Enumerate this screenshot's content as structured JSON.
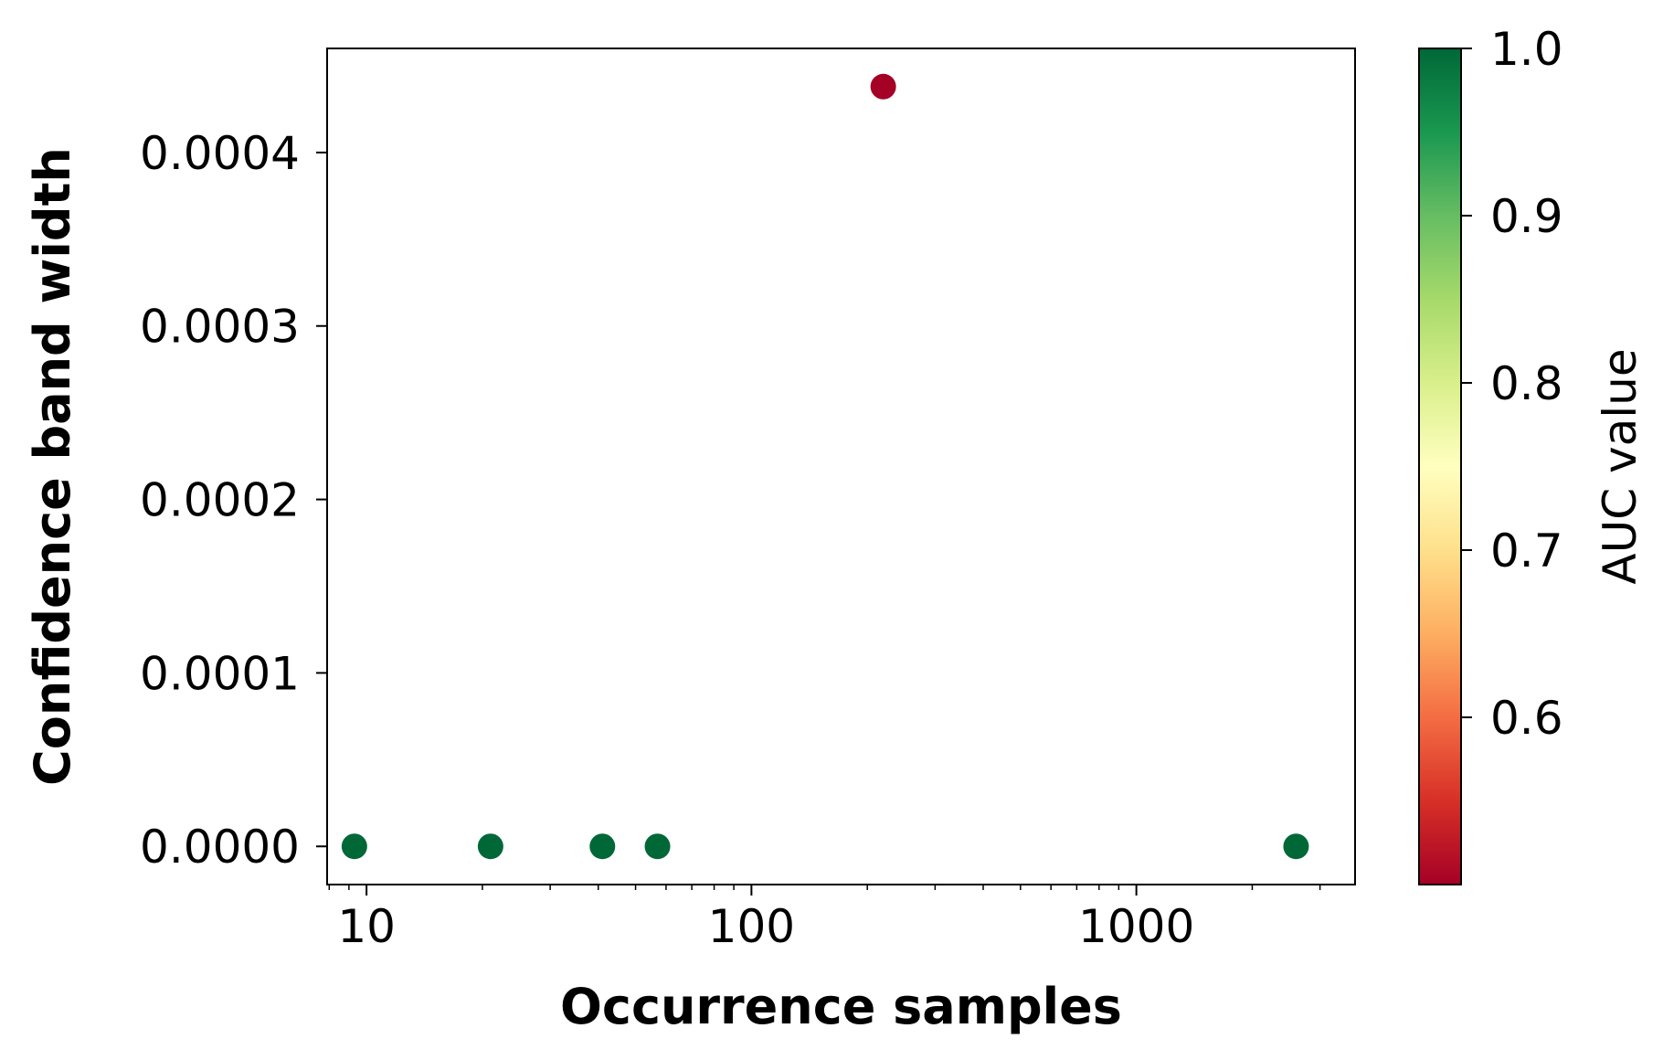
{
  "chart_data": {
    "type": "scatter",
    "xlabel": "Occurrence samples",
    "ylabel": "Confidence band width",
    "xscale": "log",
    "xlim": [
      7.9,
      3700
    ],
    "ylim": [
      -2.2e-05,
      0.00046
    ],
    "xticks": [
      {
        "value": 10,
        "label": "10"
      },
      {
        "value": 100,
        "label": "100"
      },
      {
        "value": 1000,
        "label": "1000"
      }
    ],
    "yticks": [
      {
        "value": 0.0,
        "label": "0.0000"
      },
      {
        "value": 0.0001,
        "label": "0.0001"
      },
      {
        "value": 0.0002,
        "label": "0.0002"
      },
      {
        "value": 0.0003,
        "label": "0.0003"
      },
      {
        "value": 0.0004,
        "label": "0.0004"
      }
    ],
    "points": [
      {
        "x": 9.3,
        "y": 0.0,
        "auc": 1.0
      },
      {
        "x": 21,
        "y": 0.0,
        "auc": 1.0
      },
      {
        "x": 41,
        "y": 0.0,
        "auc": 1.0
      },
      {
        "x": 57,
        "y": 0.0,
        "auc": 1.0
      },
      {
        "x": 220,
        "y": 0.000438,
        "auc": 0.5
      },
      {
        "x": 2600,
        "y": 0.0,
        "auc": 1.0
      }
    ],
    "colorbar": {
      "label": "AUC value",
      "colormap": "RdYlGn",
      "range": [
        0.5,
        1.0
      ],
      "stops": [
        "#a50026",
        "#d73027",
        "#f46d43",
        "#fdae61",
        "#fee08b",
        "#ffffbf",
        "#d9ef8b",
        "#a6d96a",
        "#66bd63",
        "#1a9850",
        "#006837"
      ],
      "ticks": [
        {
          "value": 0.6,
          "label": "0.6"
        },
        {
          "value": 0.7,
          "label": "0.7"
        },
        {
          "value": 0.8,
          "label": "0.8"
        },
        {
          "value": 0.9,
          "label": "0.9"
        },
        {
          "value": 1.0,
          "label": "1.0"
        }
      ]
    },
    "grid": false,
    "legend": "none"
  }
}
